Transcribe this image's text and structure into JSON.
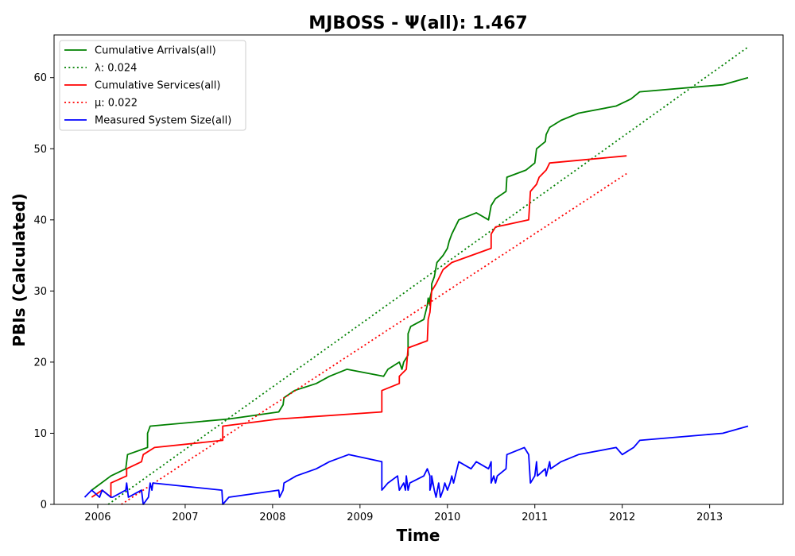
{
  "chart_data": {
    "type": "line",
    "title": "MJBOSS -  Ψ(all): 1.467",
    "xlabel": "Time",
    "ylabel": "PBIs (Calculated)",
    "xlim": [
      2005.5,
      2013.84
    ],
    "ylim": [
      0,
      66
    ],
    "x_ticks": [
      2006,
      2007,
      2008,
      2009,
      2010,
      2011,
      2012,
      2013
    ],
    "x_tick_labels": [
      "2006",
      "2007",
      "2008",
      "2009",
      "2010",
      "2011",
      "2012",
      "2013"
    ],
    "y_ticks": [
      0,
      10,
      20,
      30,
      40,
      50,
      60
    ],
    "y_tick_labels": [
      "0",
      "10",
      "20",
      "30",
      "40",
      "50",
      "60"
    ],
    "grid": false,
    "legend_position": "top-left",
    "legend": [
      {
        "label": "Cumulative Arrivals(all)",
        "color": "#008000",
        "style": "solid"
      },
      {
        "label": "λ: 0.024",
        "color": "#008000",
        "style": "dotted"
      },
      {
        "label": "Cumulative Services(all)",
        "color": "#ff0000",
        "style": "solid"
      },
      {
        "label": "μ: 0.022",
        "color": "#ff0000",
        "style": "dotted"
      },
      {
        "label": "Measured System Size(all)",
        "color": "#0000ff",
        "style": "solid"
      }
    ],
    "series": [
      {
        "name": "Cumulative Arrivals(all)",
        "color": "#008000",
        "style": "solid",
        "points": [
          [
            2005.93,
            2
          ],
          [
            2006.15,
            4
          ],
          [
            2006.32,
            5
          ],
          [
            2006.34,
            7
          ],
          [
            2006.57,
            8
          ],
          [
            2006.57,
            10
          ],
          [
            2006.6,
            11
          ],
          [
            2007.5,
            12
          ],
          [
            2008.07,
            13
          ],
          [
            2008.12,
            14
          ],
          [
            2008.13,
            15
          ],
          [
            2008.25,
            16
          ],
          [
            2008.5,
            17
          ],
          [
            2008.65,
            18
          ],
          [
            2008.85,
            19
          ],
          [
            2009.27,
            18
          ],
          [
            2009.32,
            19
          ],
          [
            2009.45,
            20
          ],
          [
            2009.48,
            19
          ],
          [
            2009.5,
            20
          ],
          [
            2009.55,
            21
          ],
          [
            2009.55,
            24
          ],
          [
            2009.58,
            25
          ],
          [
            2009.73,
            26
          ],
          [
            2009.77,
            28
          ],
          [
            2009.78,
            29
          ],
          [
            2009.8,
            28
          ],
          [
            2009.8,
            29
          ],
          [
            2009.82,
            30
          ],
          [
            2009.82,
            31
          ],
          [
            2009.85,
            32
          ],
          [
            2009.88,
            34
          ],
          [
            2009.95,
            35
          ],
          [
            2010.0,
            36
          ],
          [
            2010.02,
            37
          ],
          [
            2010.05,
            38
          ],
          [
            2010.13,
            40
          ],
          [
            2010.33,
            41
          ],
          [
            2010.47,
            40
          ],
          [
            2010.5,
            42
          ],
          [
            2010.55,
            43
          ],
          [
            2010.67,
            44
          ],
          [
            2010.68,
            46
          ],
          [
            2010.9,
            47
          ],
          [
            2011.0,
            48
          ],
          [
            2011.02,
            50
          ],
          [
            2011.12,
            51
          ],
          [
            2011.13,
            52
          ],
          [
            2011.17,
            53
          ],
          [
            2011.3,
            54
          ],
          [
            2011.5,
            55
          ],
          [
            2011.93,
            56
          ],
          [
            2012.1,
            57
          ],
          [
            2012.2,
            58
          ],
          [
            2013.15,
            59
          ],
          [
            2013.44,
            60
          ]
        ]
      },
      {
        "name": "λ: 0.024",
        "color": "#008000",
        "style": "dotted",
        "points": [
          [
            2006.12,
            0
          ],
          [
            2013.44,
            64.3
          ]
        ]
      },
      {
        "name": "Cumulative Services(all)",
        "color": "#ff0000",
        "style": "solid",
        "points": [
          [
            2005.93,
            1
          ],
          [
            2006.05,
            2
          ],
          [
            2006.15,
            1
          ],
          [
            2006.15,
            3
          ],
          [
            2006.33,
            4
          ],
          [
            2006.33,
            5
          ],
          [
            2006.5,
            6
          ],
          [
            2006.52,
            7
          ],
          [
            2006.65,
            8
          ],
          [
            2007.43,
            9
          ],
          [
            2007.43,
            11
          ],
          [
            2008.07,
            12
          ],
          [
            2009.25,
            13
          ],
          [
            2009.25,
            16
          ],
          [
            2009.45,
            17
          ],
          [
            2009.45,
            18
          ],
          [
            2009.53,
            19
          ],
          [
            2009.55,
            22
          ],
          [
            2009.77,
            23
          ],
          [
            2009.78,
            26
          ],
          [
            2009.8,
            27
          ],
          [
            2009.82,
            30
          ],
          [
            2009.87,
            31
          ],
          [
            2009.95,
            33
          ],
          [
            2010.05,
            34
          ],
          [
            2010.5,
            36
          ],
          [
            2010.5,
            38
          ],
          [
            2010.55,
            39
          ],
          [
            2010.93,
            40
          ],
          [
            2010.95,
            44
          ],
          [
            2011.02,
            45
          ],
          [
            2011.05,
            46
          ],
          [
            2011.13,
            47
          ],
          [
            2011.17,
            48
          ],
          [
            2012.05,
            49
          ]
        ]
      },
      {
        "name": "μ: 0.022",
        "color": "#ff0000",
        "style": "dotted",
        "points": [
          [
            2006.27,
            0
          ],
          [
            2012.05,
            46.5
          ]
        ]
      },
      {
        "name": "Measured System Size(all)",
        "color": "#0000ff",
        "style": "solid",
        "points": [
          [
            2005.85,
            1
          ],
          [
            2005.93,
            2
          ],
          [
            2006.02,
            1
          ],
          [
            2006.05,
            2
          ],
          [
            2006.15,
            1
          ],
          [
            2006.17,
            1
          ],
          [
            2006.32,
            2
          ],
          [
            2006.33,
            3
          ],
          [
            2006.35,
            1
          ],
          [
            2006.5,
            2
          ],
          [
            2006.52,
            0
          ],
          [
            2006.58,
            1
          ],
          [
            2006.6,
            3
          ],
          [
            2006.62,
            2
          ],
          [
            2006.63,
            3
          ],
          [
            2007.42,
            2
          ],
          [
            2007.43,
            0
          ],
          [
            2007.5,
            1
          ],
          [
            2008.07,
            2
          ],
          [
            2008.08,
            1
          ],
          [
            2008.12,
            2
          ],
          [
            2008.13,
            3
          ],
          [
            2008.27,
            4
          ],
          [
            2008.5,
            5
          ],
          [
            2008.65,
            6
          ],
          [
            2008.87,
            7
          ],
          [
            2009.25,
            6
          ],
          [
            2009.25,
            2
          ],
          [
            2009.32,
            3
          ],
          [
            2009.43,
            4
          ],
          [
            2009.45,
            2
          ],
          [
            2009.5,
            3
          ],
          [
            2009.52,
            2
          ],
          [
            2009.53,
            4
          ],
          [
            2009.55,
            2
          ],
          [
            2009.57,
            3
          ],
          [
            2009.73,
            4
          ],
          [
            2009.77,
            5
          ],
          [
            2009.8,
            4
          ],
          [
            2009.8,
            2
          ],
          [
            2009.82,
            3
          ],
          [
            2009.82,
            4
          ],
          [
            2009.85,
            2
          ],
          [
            2009.87,
            1
          ],
          [
            2009.9,
            3
          ],
          [
            2009.92,
            1
          ],
          [
            2009.95,
            2
          ],
          [
            2009.97,
            3
          ],
          [
            2010.0,
            2
          ],
          [
            2010.03,
            3
          ],
          [
            2010.05,
            4
          ],
          [
            2010.07,
            3
          ],
          [
            2010.13,
            6
          ],
          [
            2010.27,
            5
          ],
          [
            2010.33,
            6
          ],
          [
            2010.47,
            5
          ],
          [
            2010.5,
            6
          ],
          [
            2010.5,
            3
          ],
          [
            2010.53,
            4
          ],
          [
            2010.55,
            3
          ],
          [
            2010.57,
            4
          ],
          [
            2010.67,
            5
          ],
          [
            2010.68,
            7
          ],
          [
            2010.88,
            8
          ],
          [
            2010.93,
            7
          ],
          [
            2010.95,
            3
          ],
          [
            2011.0,
            4
          ],
          [
            2011.02,
            6
          ],
          [
            2011.03,
            4
          ],
          [
            2011.12,
            5
          ],
          [
            2011.13,
            4
          ],
          [
            2011.17,
            6
          ],
          [
            2011.18,
            5
          ],
          [
            2011.3,
            6
          ],
          [
            2011.5,
            7
          ],
          [
            2011.93,
            8
          ],
          [
            2012.0,
            7
          ],
          [
            2012.13,
            8
          ],
          [
            2012.2,
            9
          ],
          [
            2013.15,
            10
          ],
          [
            2013.44,
            11
          ]
        ]
      }
    ]
  }
}
